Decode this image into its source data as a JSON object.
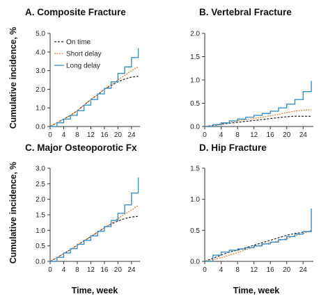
{
  "figure": {
    "ylabel": "Cumulative incidence, %",
    "xlabel": "Time, week"
  },
  "colors": {
    "On time": "#222222",
    "Short delay": "#e07a2e",
    "Long delay": "#3b8fc4"
  },
  "chart_data": [
    {
      "type": "line",
      "title": "A. Composite Fracture",
      "xlabel": "Time, week",
      "ylabel": "Cumulative incidence, %",
      "xlim": [
        0,
        26.5
      ],
      "ylim": [
        0,
        5
      ],
      "xticks": [
        0,
        4,
        8,
        12,
        16,
        20,
        24
      ],
      "yticks": [
        0.0,
        1.0,
        2.0,
        3.0,
        4.0,
        5.0
      ],
      "ytick_labels": [
        "0.0",
        "1.0",
        "2.0",
        "3.0",
        "4.0",
        "5.0"
      ],
      "legend": {
        "position": "top-left",
        "entries": [
          "On time",
          "Short delay",
          "Long delay"
        ]
      },
      "x": [
        0,
        2,
        4,
        6,
        8,
        10,
        12,
        14,
        16,
        18,
        20,
        22,
        24,
        26
      ],
      "series": [
        {
          "name": "On time",
          "style": "dashed",
          "values": [
            0,
            0.2,
            0.4,
            0.6,
            0.85,
            1.15,
            1.45,
            1.7,
            2.0,
            2.2,
            2.4,
            2.55,
            2.65,
            2.7
          ]
        },
        {
          "name": "Short delay",
          "style": "dotted",
          "values": [
            0,
            0.2,
            0.4,
            0.6,
            0.85,
            1.15,
            1.45,
            1.7,
            2.0,
            2.25,
            2.5,
            2.75,
            3.0,
            3.2
          ]
        },
        {
          "name": "Long delay",
          "style": "step",
          "values": [
            0,
            0.2,
            0.4,
            0.6,
            0.85,
            1.15,
            1.45,
            1.75,
            2.05,
            2.4,
            2.85,
            3.2,
            3.7,
            4.2
          ]
        }
      ]
    },
    {
      "type": "line",
      "title": "B. Vertebral Fracture",
      "xlabel": "Time, week",
      "ylabel": "Cumulative incidence, %",
      "xlim": [
        0,
        26.5
      ],
      "ylim": [
        0,
        2
      ],
      "xticks": [
        0,
        4,
        8,
        12,
        16,
        20,
        24
      ],
      "yticks": [
        0.0,
        0.5,
        1.0,
        1.5,
        2.0
      ],
      "ytick_labels": [
        "0.0",
        "0.5",
        "1.0",
        "1.5",
        "2.0"
      ],
      "x": [
        0,
        2,
        4,
        6,
        8,
        10,
        12,
        14,
        16,
        18,
        20,
        22,
        24,
        26
      ],
      "series": [
        {
          "name": "On time",
          "style": "dashed",
          "values": [
            0,
            0.02,
            0.05,
            0.07,
            0.09,
            0.11,
            0.13,
            0.15,
            0.17,
            0.19,
            0.21,
            0.22,
            0.22,
            0.22
          ]
        },
        {
          "name": "Short delay",
          "style": "dotted",
          "values": [
            0,
            0.03,
            0.06,
            0.09,
            0.12,
            0.15,
            0.17,
            0.2,
            0.23,
            0.26,
            0.3,
            0.33,
            0.35,
            0.36
          ]
        },
        {
          "name": "Long delay",
          "style": "step",
          "values": [
            0,
            0.04,
            0.08,
            0.12,
            0.16,
            0.2,
            0.24,
            0.28,
            0.33,
            0.4,
            0.48,
            0.58,
            0.75,
            0.98
          ]
        }
      ]
    },
    {
      "type": "line",
      "title": "C. Major Osteoporotic Fx",
      "xlabel": "Time, week",
      "ylabel": "Cumulative incidence, %",
      "xlim": [
        0,
        26.5
      ],
      "ylim": [
        0,
        3
      ],
      "xticks": [
        0,
        4,
        8,
        12,
        16,
        20,
        24
      ],
      "yticks": [
        0.0,
        0.5,
        1.0,
        1.5,
        2.0,
        2.5,
        3.0
      ],
      "ytick_labels": [
        "0.0",
        "0.5",
        "1.0",
        "1.5",
        "2.0",
        "2.5",
        "3.0"
      ],
      "x": [
        0,
        2,
        4,
        6,
        8,
        10,
        12,
        14,
        16,
        18,
        20,
        22,
        24,
        26
      ],
      "series": [
        {
          "name": "On time",
          "style": "dashed",
          "values": [
            0,
            0.12,
            0.25,
            0.38,
            0.52,
            0.66,
            0.8,
            0.94,
            1.08,
            1.2,
            1.3,
            1.38,
            1.43,
            1.45
          ]
        },
        {
          "name": "Short delay",
          "style": "dotted",
          "values": [
            0,
            0.12,
            0.25,
            0.38,
            0.52,
            0.66,
            0.8,
            0.94,
            1.08,
            1.22,
            1.38,
            1.52,
            1.65,
            1.8
          ]
        },
        {
          "name": "Long delay",
          "style": "step",
          "values": [
            0,
            0.13,
            0.27,
            0.41,
            0.55,
            0.68,
            0.82,
            0.97,
            1.12,
            1.32,
            1.55,
            1.82,
            2.2,
            2.7
          ]
        }
      ]
    },
    {
      "type": "line",
      "title": "D. Hip Fracture",
      "xlabel": "Time, week",
      "ylabel": "Cumulative incidence, %",
      "xlim": [
        0,
        26.5
      ],
      "ylim": [
        0,
        1.5
      ],
      "xticks": [
        0,
        4,
        8,
        12,
        16,
        20,
        24
      ],
      "yticks": [
        0.0,
        0.5,
        1.0,
        1.5
      ],
      "ytick_labels": [
        "0.0",
        "0.5",
        "1.0",
        "1.5"
      ],
      "x": [
        0,
        2,
        4,
        6,
        8,
        10,
        12,
        14,
        16,
        18,
        20,
        22,
        24,
        26
      ],
      "series": [
        {
          "name": "On time",
          "style": "dashed",
          "values": [
            0,
            0.05,
            0.1,
            0.15,
            0.18,
            0.22,
            0.26,
            0.3,
            0.34,
            0.38,
            0.42,
            0.45,
            0.47,
            0.48
          ]
        },
        {
          "name": "Short delay",
          "style": "dotted",
          "values": [
            0,
            0.03,
            0.06,
            0.1,
            0.14,
            0.19,
            0.23,
            0.27,
            0.3,
            0.33,
            0.37,
            0.41,
            0.45,
            0.5
          ]
        },
        {
          "name": "Long delay",
          "style": "step",
          "values": [
            0,
            0.1,
            0.15,
            0.18,
            0.2,
            0.22,
            0.25,
            0.28,
            0.31,
            0.35,
            0.4,
            0.44,
            0.48,
            0.85
          ]
        }
      ]
    }
  ]
}
